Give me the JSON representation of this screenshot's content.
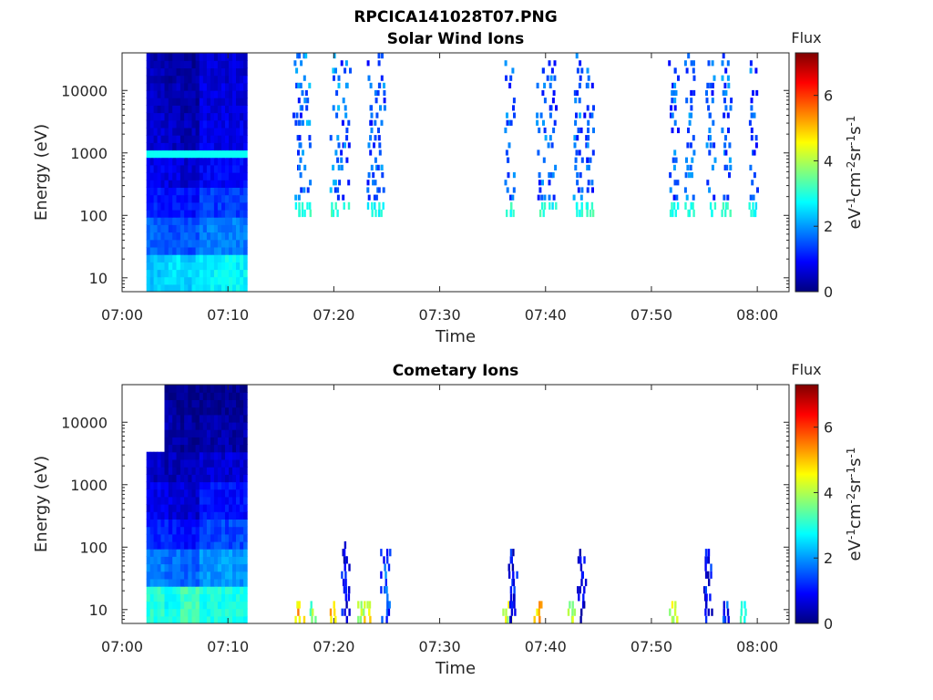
{
  "figure_title": "RPCICA141028T07.PNG",
  "colors": {
    "colormap": [
      "#00007f",
      "#0000ff",
      "#007fff",
      "#00ffff",
      "#7fff7f",
      "#ffff00",
      "#ff7f00",
      "#ff0000",
      "#7f0000"
    ],
    "axis": "#262626",
    "background": "#ffffff"
  },
  "chart_data": [
    {
      "type": "heatmap",
      "title": "Solar Wind Ions",
      "xlabel": "Time",
      "ylabel": "Energy (eV)",
      "yscale": "log",
      "ylim": [
        6,
        40000
      ],
      "xlim": [
        "07:00",
        "08:03"
      ],
      "x_ticks": [
        "07:00",
        "07:10",
        "07:20",
        "07:30",
        "07:40",
        "07:50",
        "08:00"
      ],
      "y_ticks": [
        "10",
        "100",
        "1000",
        "10000"
      ],
      "colorbar": {
        "title": "Flux",
        "label": "eV-1cm-2sr-1s-1",
        "label_parts": [
          "eV",
          "-1",
          "cm",
          "-2",
          "sr",
          "-1",
          "s",
          "-1"
        ],
        "range": [
          0,
          7.3
        ],
        "ticks": [
          "0",
          "2",
          "4",
          "6"
        ]
      },
      "grid": false,
      "blocks": [
        {
          "x0": "07:02.3",
          "x1": "07:04.0",
          "e0": 6,
          "e1": 40000,
          "flux": [
            2.3,
            1.6,
            1.1,
            0.8,
            0.6,
            0.5,
            0.4
          ]
        },
        {
          "x0": "07:04.0",
          "x1": "07:05.5",
          "e0": 6,
          "e1": 40000,
          "flux": [
            2.5,
            1.5,
            1.0,
            0.7,
            0.5,
            0.4,
            0.3
          ]
        },
        {
          "x0": "07:05.5",
          "x1": "07:07.3",
          "e0": 6,
          "e1": 40000,
          "flux": [
            2.4,
            1.5,
            1.0,
            0.6,
            0.4,
            0.3,
            0.2
          ]
        },
        {
          "x0": "07:07.3",
          "x1": "07:11.8",
          "e0": 6,
          "e1": 40000,
          "flux": [
            2.7,
            1.8,
            1.3,
            0.9,
            0.8,
            0.7,
            0.6
          ]
        }
      ],
      "bright_band": {
        "e": 900,
        "flux": 2.8
      },
      "bursts": [
        {
          "t": "07:16.5",
          "emin": 100,
          "emax": 35000,
          "flux": 1.6,
          "low_flux": 3.0
        },
        {
          "t": "07:17.3",
          "emin": 100,
          "emax": 35000,
          "flux": 1.8,
          "low_flux": 3.0
        },
        {
          "t": "07:20.0",
          "emin": 90,
          "emax": 35000,
          "flux": 1.8,
          "low_flux": 3.2
        },
        {
          "t": "07:21.0",
          "emin": 120,
          "emax": 30000,
          "flux": 1.5,
          "low_flux": 3.0
        },
        {
          "t": "07:23.5",
          "emin": 100,
          "emax": 30000,
          "flux": 1.5,
          "low_flux": 2.8
        },
        {
          "t": "07:24.3",
          "emin": 100,
          "emax": 35000,
          "flux": 1.6,
          "low_flux": 2.8
        },
        {
          "t": "07:36.5",
          "emin": 100,
          "emax": 30000,
          "flux": 1.6,
          "low_flux": 3.0
        },
        {
          "t": "07:39.5",
          "emin": 90,
          "emax": 35000,
          "flux": 1.6,
          "low_flux": 3.1
        },
        {
          "t": "07:40.5",
          "emin": 120,
          "emax": 30000,
          "flux": 1.4,
          "low_flux": 2.8
        },
        {
          "t": "07:43.0",
          "emin": 100,
          "emax": 35000,
          "flux": 1.6,
          "low_flux": 3.0
        },
        {
          "t": "07:44.0",
          "emin": 110,
          "emax": 30000,
          "flux": 1.4,
          "low_flux": 3.1
        },
        {
          "t": "07:52.0",
          "emin": 100,
          "emax": 30000,
          "flux": 1.5,
          "low_flux": 3.0
        },
        {
          "t": "07:53.5",
          "emin": 110,
          "emax": 35000,
          "flux": 1.6,
          "low_flux": 2.9
        },
        {
          "t": "07:55.5",
          "emin": 100,
          "emax": 30000,
          "flux": 1.5,
          "low_flux": 2.8
        },
        {
          "t": "07:57.0",
          "emin": 90,
          "emax": 35000,
          "flux": 1.6,
          "low_flux": 3.0
        },
        {
          "t": "07:59.5",
          "emin": 110,
          "emax": 30000,
          "flux": 1.5,
          "low_flux": 2.8
        }
      ]
    },
    {
      "type": "heatmap",
      "title": "Cometary Ions",
      "xlabel": "Time",
      "ylabel": "Energy (eV)",
      "yscale": "log",
      "ylim": [
        6,
        40000
      ],
      "xlim": [
        "07:00",
        "08:03"
      ],
      "x_ticks": [
        "07:00",
        "07:10",
        "07:20",
        "07:30",
        "07:40",
        "07:50",
        "08:00"
      ],
      "y_ticks": [
        "10",
        "100",
        "1000",
        "10000"
      ],
      "colorbar": {
        "title": "Flux",
        "label": "eV-1cm-2sr-1s-1",
        "label_parts": [
          "eV",
          "-1",
          "cm",
          "-2",
          "sr",
          "-1",
          "s",
          "-1"
        ],
        "range": [
          0,
          7.3
        ],
        "ticks": [
          "0",
          "2",
          "4",
          "6"
        ]
      },
      "grid": false,
      "blocks": [
        {
          "x0": "07:02.3",
          "x1": "07:04.0",
          "e0": 6,
          "e1": 3500,
          "flux": [
            3.0,
            1.8,
            1.2,
            0.8,
            0.5,
            0.3,
            0.2
          ]
        },
        {
          "x0": "07:04.0",
          "x1": "07:05.5",
          "e0": 6,
          "e1": 40000,
          "flux": [
            2.8,
            1.7,
            1.1,
            0.7,
            0.4,
            0.3,
            0.2
          ]
        },
        {
          "x0": "07:05.5",
          "x1": "07:07.3",
          "e0": 6,
          "e1": 40000,
          "flux": [
            3.2,
            1.6,
            1.0,
            0.6,
            0.4,
            0.2,
            0.1
          ]
        },
        {
          "x0": "07:07.3",
          "x1": "07:11.8",
          "e0": 6,
          "e1": 40000,
          "flux": [
            2.9,
            2.0,
            1.4,
            1.0,
            0.6,
            0.3,
            0.1
          ]
        }
      ],
      "bursts": [
        {
          "t": "07:16.7",
          "emin": 6,
          "emax": 15,
          "flux": 5.0
        },
        {
          "t": "07:17.8",
          "emin": 6,
          "emax": 15,
          "flux": 3.6
        },
        {
          "t": "07:19.9",
          "emin": 6,
          "emax": 15,
          "flux": 5.0
        },
        {
          "t": "07:21.0",
          "emin": 6,
          "emax": 120,
          "flux": 0.9
        },
        {
          "t": "07:22.5",
          "emin": 6,
          "emax": 15,
          "flux": 4.2
        },
        {
          "t": "07:23.2",
          "emin": 6,
          "emax": 15,
          "flux": 4.5
        },
        {
          "t": "07:24.8",
          "emin": 6,
          "emax": 100,
          "flux": 1.4
        },
        {
          "t": "07:36.3",
          "emin": 6,
          "emax": 15,
          "flux": 4.2
        },
        {
          "t": "07:36.8",
          "emin": 6,
          "emax": 100,
          "flux": 0.9
        },
        {
          "t": "07:39.2",
          "emin": 6,
          "emax": 15,
          "flux": 5.0
        },
        {
          "t": "07:42.3",
          "emin": 6,
          "emax": 15,
          "flux": 4.0
        },
        {
          "t": "07:43.3",
          "emin": 6,
          "emax": 100,
          "flux": 0.8
        },
        {
          "t": "07:52.0",
          "emin": 6,
          "emax": 15,
          "flux": 4.3
        },
        {
          "t": "07:55.2",
          "emin": 6,
          "emax": 100,
          "flux": 0.9
        },
        {
          "t": "07:56.8",
          "emin": 6,
          "emax": 15,
          "flux": 1.2
        },
        {
          "t": "07:58.5",
          "emin": 6,
          "emax": 15,
          "flux": 3.0
        }
      ]
    }
  ]
}
